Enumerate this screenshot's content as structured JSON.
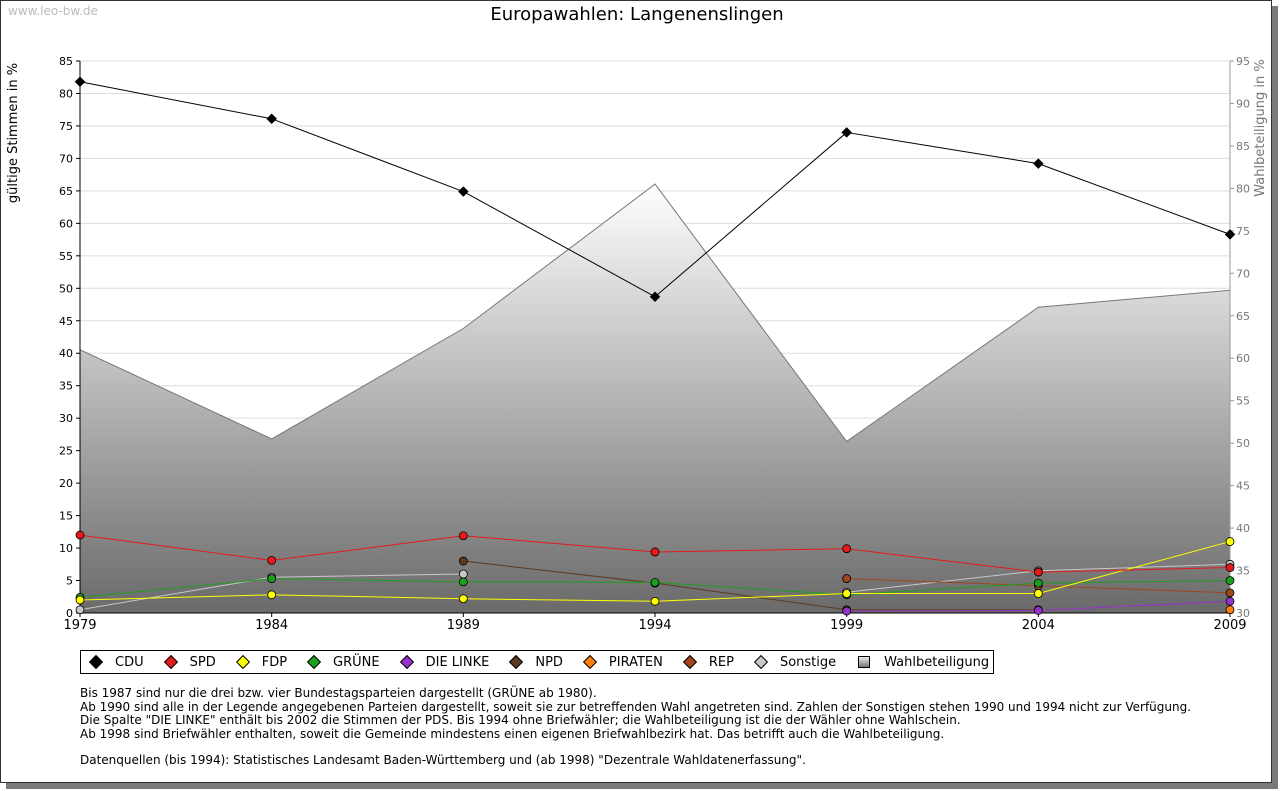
{
  "watermark": "www.leo-bw.de",
  "chart_data": {
    "type": "line",
    "title": "Europawahlen: Langenenslingen",
    "ylabel_left": "gültige Stimmen in %",
    "ylabel_right": "Wahlbeteiligung in %",
    "x": [
      1979,
      1984,
      1989,
      1994,
      1999,
      2004,
      2009
    ],
    "ylim_left": [
      0,
      85
    ],
    "yticks_left": [
      0,
      5,
      10,
      15,
      20,
      25,
      30,
      35,
      40,
      45,
      50,
      55,
      60,
      65,
      70,
      75,
      80,
      85
    ],
    "ylim_right": [
      30,
      95
    ],
    "yticks_right": [
      30,
      35,
      40,
      45,
      50,
      55,
      60,
      65,
      70,
      75,
      80,
      85,
      90,
      95
    ],
    "turnout": {
      "name": "Wahlbeteiligung",
      "values": [
        61.0,
        50.5,
        63.5,
        80.5,
        50.2,
        66.0,
        68.0
      ]
    },
    "series": [
      {
        "name": "CDU",
        "color": "#000000",
        "values": [
          81.8,
          76.1,
          64.9,
          48.7,
          74.0,
          69.2,
          58.3
        ]
      },
      {
        "name": "SPD",
        "color": "#e41a1c",
        "values": [
          12.0,
          8.1,
          11.9,
          9.4,
          9.9,
          6.3,
          7.0
        ]
      },
      {
        "name": "FDP",
        "color": "#ffff00",
        "values": [
          2.0,
          2.8,
          2.2,
          1.8,
          3.0,
          3.0,
          11.0
        ]
      },
      {
        "name": "GRÜNE",
        "color": "#1e9e1e",
        "values": [
          2.4,
          5.3,
          4.8,
          4.7,
          2.8,
          4.6,
          5.0
        ]
      },
      {
        "name": "DIE LINKE",
        "color": "#9932cc",
        "values": [
          null,
          null,
          null,
          null,
          0.3,
          0.4,
          1.8
        ]
      },
      {
        "name": "NPD",
        "color": "#5c3b20",
        "values": [
          null,
          null,
          8.0,
          4.6,
          0.5,
          0.5,
          null
        ]
      },
      {
        "name": "PIRATEN",
        "color": "#ff7f0e",
        "values": [
          null,
          null,
          null,
          null,
          null,
          null,
          0.5
        ]
      },
      {
        "name": "REP",
        "color": "#a0461e",
        "values": [
          null,
          null,
          null,
          null,
          5.3,
          4.2,
          3.1
        ]
      },
      {
        "name": "Sonstige",
        "color": "#c8c8c8",
        "values": [
          0.5,
          5.5,
          6.0,
          null,
          3.2,
          6.5,
          7.5
        ]
      }
    ]
  },
  "legend": [
    {
      "name": "CDU",
      "color": "#000000"
    },
    {
      "name": "SPD",
      "color": "#e41a1c"
    },
    {
      "name": "FDP",
      "color": "#ffff00"
    },
    {
      "name": "GRÜNE",
      "color": "#1e9e1e"
    },
    {
      "name": "DIE LINKE",
      "color": "#9932cc"
    },
    {
      "name": "NPD",
      "color": "#5c3b20"
    },
    {
      "name": "PIRATEN",
      "color": "#ff7f0e"
    },
    {
      "name": "REP",
      "color": "#a0461e"
    },
    {
      "name": "Sonstige",
      "color": "#c8c8c8"
    },
    {
      "name": "Wahlbeteiligung",
      "color": "#999999"
    }
  ],
  "notes": [
    "Bis 1987 sind nur die drei bzw. vier Bundestagsparteien dargestellt (GRÜNE ab 1980).",
    "Ab 1990 sind alle in der Legende angegebenen Parteien dargestellt, soweit sie zur betreffenden Wahl angetreten sind. Zahlen der Sonstigen stehen 1990 und 1994 nicht zur Verfügung.",
    "Die Spalte \"DIE LINKE\" enthält bis 2002 die Stimmen der PDS. Bis 1994 ohne Briefwähler; die Wahlbeteiligung ist die der Wähler ohne Wahlschein.",
    "Ab 1998 sind Briefwähler enthalten, soweit die Gemeinde mindestens einen eigenen Briefwahlbezirk hat. Das betrifft auch die Wahlbeteiligung."
  ],
  "source": "Datenquellen (bis 1994): Statistisches Landesamt Baden-Württemberg und (ab 1998) \"Dezentrale Wahldatenerfassung\"."
}
